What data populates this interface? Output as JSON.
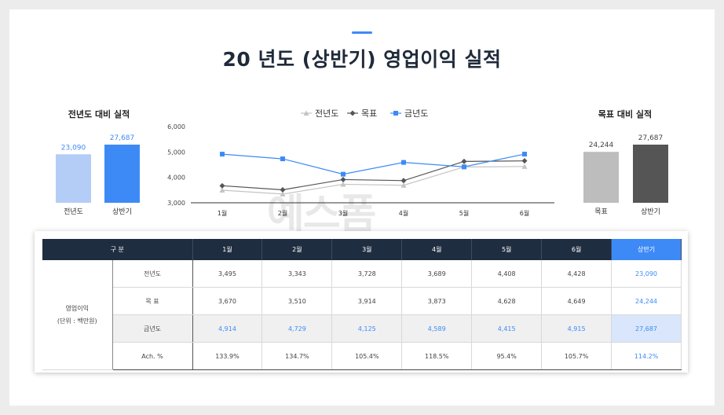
{
  "title": "20  년도 (상반기) 영업이익 실적",
  "watermark": "예스폼",
  "chart_data": [
    {
      "type": "bar",
      "title": "전년도 대비 실적",
      "categories": [
        "전년도",
        "상반기"
      ],
      "values": [
        23090,
        27687
      ],
      "value_labels": [
        "23,090",
        "27,687"
      ],
      "colors": [
        "#b4cdf7",
        "#3d8af7"
      ],
      "ylim": [
        0,
        27687
      ]
    },
    {
      "type": "line",
      "categories": [
        "1월",
        "2월",
        "3월",
        "4월",
        "5월",
        "6월"
      ],
      "ylim": [
        3000,
        6000
      ],
      "yticks": [
        3000,
        4000,
        5000,
        6000
      ],
      "ytick_labels": [
        "3,000",
        "4,000",
        "5,000",
        "6,000"
      ],
      "legend_position": "top",
      "series": [
        {
          "name": "전년도",
          "values": [
            3495,
            3343,
            3728,
            3689,
            4408,
            4428
          ],
          "color": "#c4c4c4",
          "marker": "triangle"
        },
        {
          "name": "목표",
          "values": [
            3670,
            3510,
            3914,
            3873,
            4628,
            4649
          ],
          "color": "#555555",
          "marker": "diamond"
        },
        {
          "name": "금년도",
          "values": [
            4914,
            4729,
            4125,
            4589,
            4415,
            4915
          ],
          "color": "#3d8af7",
          "marker": "square"
        }
      ]
    },
    {
      "type": "bar",
      "title": "목표 대비 실적",
      "categories": [
        "목표",
        "상반기"
      ],
      "values": [
        24244,
        27687
      ],
      "value_labels": [
        "24,244",
        "27,687"
      ],
      "colors": [
        "#bdbdbd",
        "#555555"
      ],
      "ylim": [
        0,
        27687
      ]
    },
    {
      "type": "table",
      "headers": [
        "구 분",
        "1월",
        "2월",
        "3월",
        "4월",
        "5월",
        "6월",
        "상반기"
      ],
      "group_label": "영업이익",
      "group_unit": "(단위 : 백만원)",
      "rows": [
        {
          "label": "전년도",
          "cells": [
            "3,495",
            "3,343",
            "3,728",
            "3,689",
            "4,408",
            "4,428",
            "23,090"
          ]
        },
        {
          "label": "목  표",
          "cells": [
            "3,670",
            "3,510",
            "3,914",
            "3,873",
            "4,628",
            "4,649",
            "24,244"
          ]
        },
        {
          "label": "금년도",
          "cells": [
            "4,914",
            "4,729",
            "4,125",
            "4,589",
            "4,415",
            "4,915",
            "27,687"
          ]
        },
        {
          "label": "Ach. %",
          "cells": [
            "133.9%",
            "134.7%",
            "105.4%",
            "118.5%",
            "95.4%",
            "105.7%",
            "114.2%"
          ]
        }
      ]
    }
  ]
}
